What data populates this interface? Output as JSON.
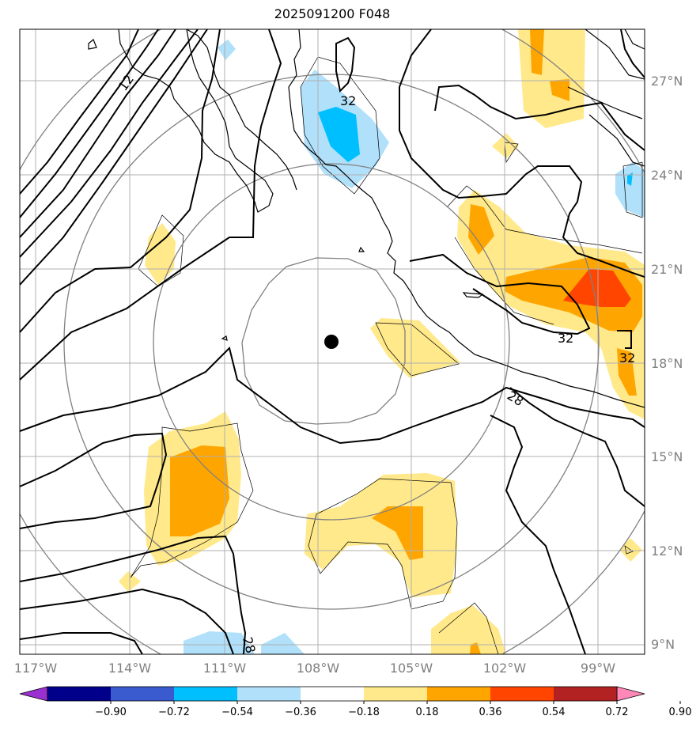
{
  "title": "2025091200 F048",
  "lon_labels": [
    "117°W",
    "114°W",
    "111°W",
    "108°W",
    "105°W",
    "102°W",
    "99°W"
  ],
  "lat_labels": [
    "27°N",
    "24°N",
    "21°N",
    "18°N",
    "15°N",
    "12°N",
    "9°N"
  ],
  "contour_labels": [
    "32",
    "32",
    "32",
    "28",
    "28",
    "12"
  ],
  "colorbar": {
    "ticks": [
      "−0.90",
      "−0.72",
      "−0.54",
      "−0.36",
      "−0.18",
      "0.18",
      "0.36",
      "0.54",
      "0.72",
      "0.90"
    ],
    "colors": [
      "#9b30d0",
      "#00008b",
      "#3a5bd0",
      "#00bfff",
      "#b0e0fa",
      "#ffffff",
      "#ffe98a",
      "#ffa500",
      "#ff4500",
      "#b22222",
      "#ff88b8"
    ]
  },
  "colors": {
    "grid": "#b0b0b0",
    "range_rings": "#808080",
    "coast": "#000000",
    "positive_light": "#ffe98a",
    "positive_mid": "#ffa500",
    "positive_strong": "#ff4500",
    "negative_light": "#b0e0fa",
    "negative_mid": "#00bfff"
  }
}
